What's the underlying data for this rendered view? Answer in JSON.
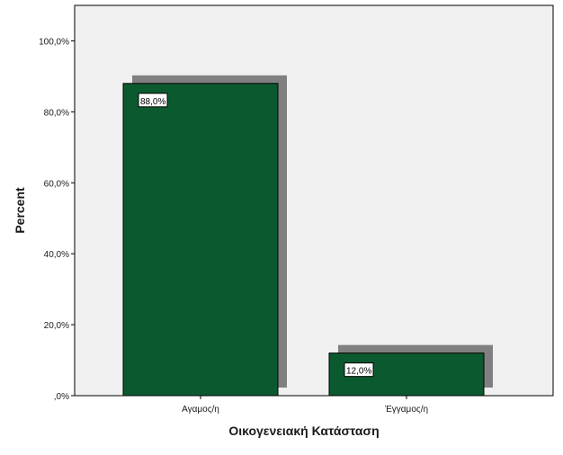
{
  "chart_data": {
    "type": "bar",
    "categories": [
      "Αγαμος/η",
      "Έγγαμος/η"
    ],
    "values": [
      88.0,
      12.0
    ],
    "data_labels": [
      "88,0%",
      "12,0%"
    ],
    "title": "",
    "xlabel": "Οικογενειακή Κατάσταση",
    "ylabel": "Percent",
    "ylim": [
      0,
      110
    ],
    "y_ticks": [
      0,
      20,
      40,
      60,
      80,
      100
    ],
    "y_tick_labels": [
      ",0%",
      "20,0%",
      "40,0%",
      "60,0%",
      "80,0%",
      "100,0%"
    ],
    "grid": false,
    "legend": "none",
    "style": {
      "plot_background": "#f0f0f0",
      "bar_fill": "#0b5a2f",
      "bar_shadow": "#808080",
      "axis_color": "#000000"
    }
  }
}
